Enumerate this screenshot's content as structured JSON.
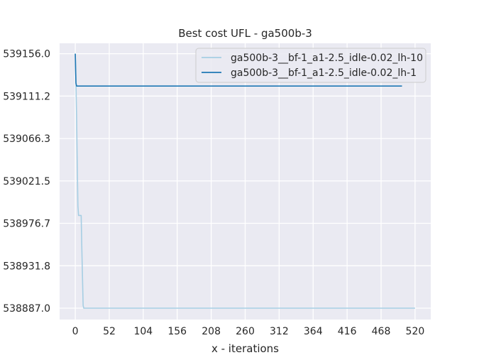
{
  "chart_data": {
    "type": "line",
    "title": "Best cost UFL - ga500b-3",
    "xlabel": "x - iterations",
    "ylabel": "",
    "xlim": [
      -24,
      544
    ],
    "ylim": [
      538875,
      539167
    ],
    "xticks": [
      0,
      52,
      104,
      156,
      208,
      260,
      312,
      364,
      416,
      468,
      520
    ],
    "yticks": [
      538887.0,
      538931.8,
      538976.7,
      539021.5,
      539066.3,
      539111.2,
      539156.0
    ],
    "ytick_labels": [
      "538887.0",
      "538931.8",
      "538976.7",
      "539021.5",
      "539066.3",
      "539111.2",
      "539156.0"
    ],
    "grid": true,
    "legend_position": "top-right",
    "series": [
      {
        "name": "ga500b-3__bf-1_a1-2.5_idle-0.02_lh-10",
        "color": "#a6cee3",
        "x": [
          0,
          1,
          2,
          3,
          4,
          5,
          6,
          9,
          10,
          11,
          12,
          13,
          520
        ],
        "y": [
          539156.0,
          539125.0,
          539090.0,
          539040.0,
          538995.0,
          538985.0,
          538985.0,
          538985.0,
          538950.0,
          538920.0,
          538890.0,
          538887.0,
          538887.0
        ]
      },
      {
        "name": "ga500b-3__bf-1_a1-2.5_idle-0.02_lh-1",
        "color": "#1f78b4",
        "x": [
          0,
          1,
          2,
          500
        ],
        "y": [
          539156.0,
          539125.0,
          539121.8,
          539121.8
        ]
      }
    ]
  }
}
